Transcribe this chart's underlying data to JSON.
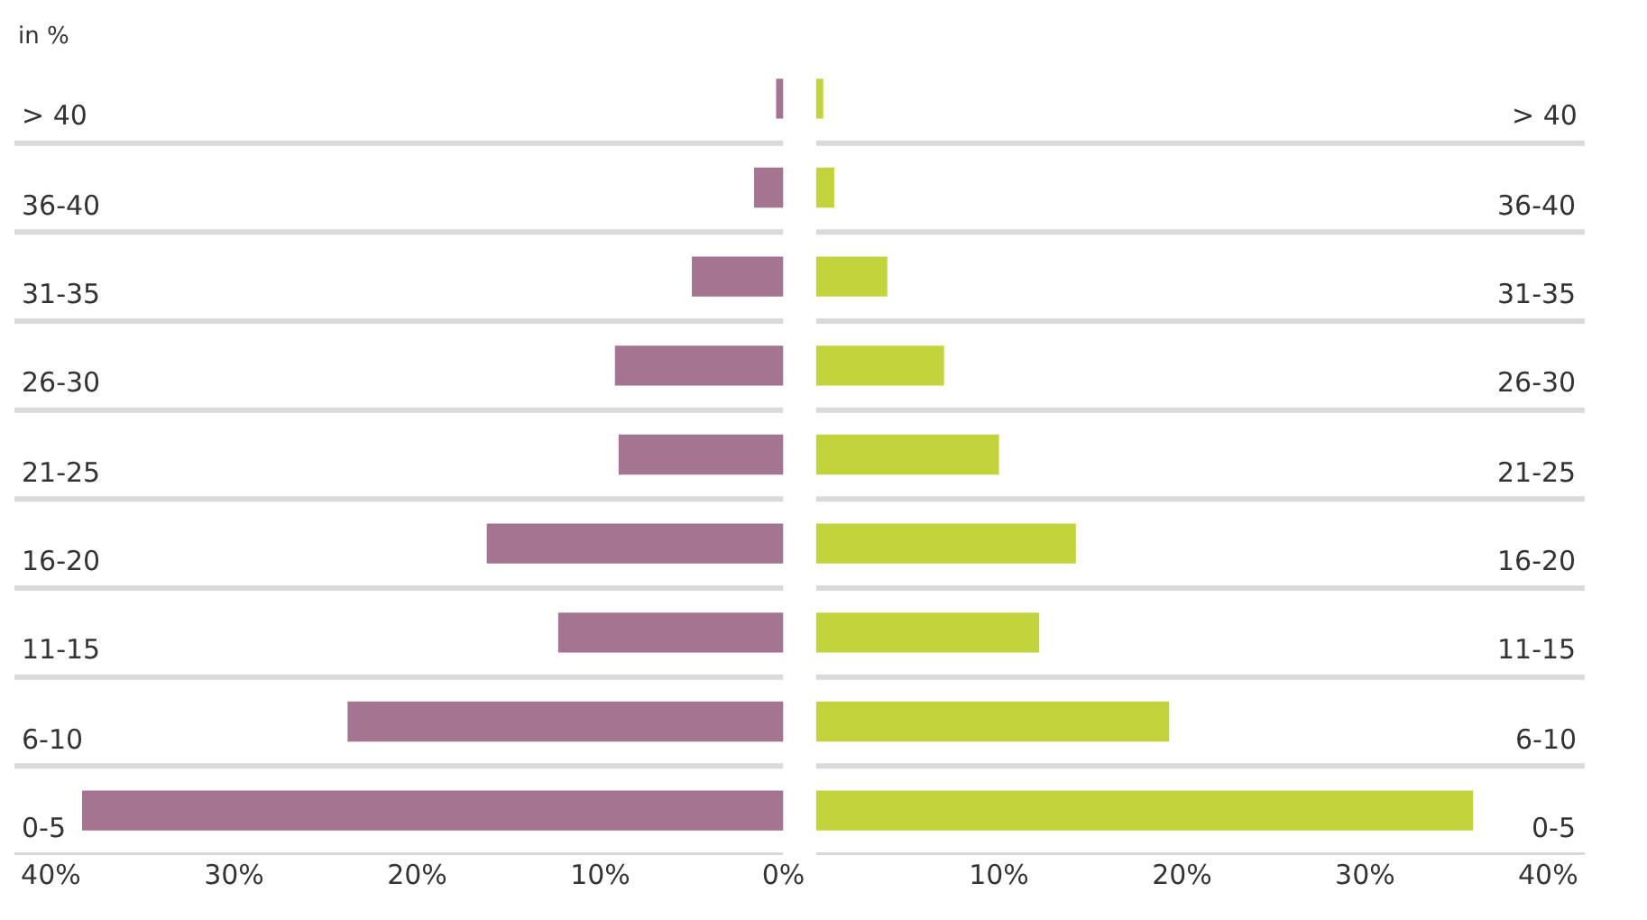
{
  "chart_data": [
    {
      "type": "bar",
      "orientation": "horizontal",
      "annotations": [
        "in %"
      ],
      "categories": [
        "> 40",
        "36-40",
        "31-35",
        "26-30",
        "21-25",
        "16-20",
        "11-15",
        "6-10",
        "0-5"
      ],
      "series": [
        {
          "color": "#a57490",
          "values": [
            0.4,
            1.6,
            5.0,
            9.2,
            9.0,
            16.2,
            12.3,
            23.8,
            38.3
          ]
        }
      ],
      "xlim": [
        42,
        0
      ],
      "xticks": [
        {
          "value": 40,
          "label": "40%"
        },
        {
          "value": 30,
          "label": "30%"
        },
        {
          "value": 20,
          "label": "20%"
        },
        {
          "value": 10,
          "label": "10%"
        },
        {
          "value": 0,
          "label": "0%"
        }
      ],
      "grid": "y"
    },
    {
      "type": "bar",
      "orientation": "horizontal",
      "categories": [
        "> 40",
        "36-40",
        "31-35",
        "26-30",
        "21-25",
        "16-20",
        "11-15",
        "6-10",
        "0-5"
      ],
      "series": [
        {
          "color": "#c3d33c",
          "values": [
            0.4,
            1.0,
            3.9,
            7.0,
            10.0,
            14.2,
            12.2,
            19.3,
            35.9
          ]
        }
      ],
      "xlim": [
        0,
        42
      ],
      "xticks": [
        {
          "value": 10,
          "label": "10%"
        },
        {
          "value": 20,
          "label": "20%"
        },
        {
          "value": 30,
          "label": "30%"
        },
        {
          "value": 40,
          "label": "40%"
        }
      ],
      "grid": "y"
    }
  ]
}
